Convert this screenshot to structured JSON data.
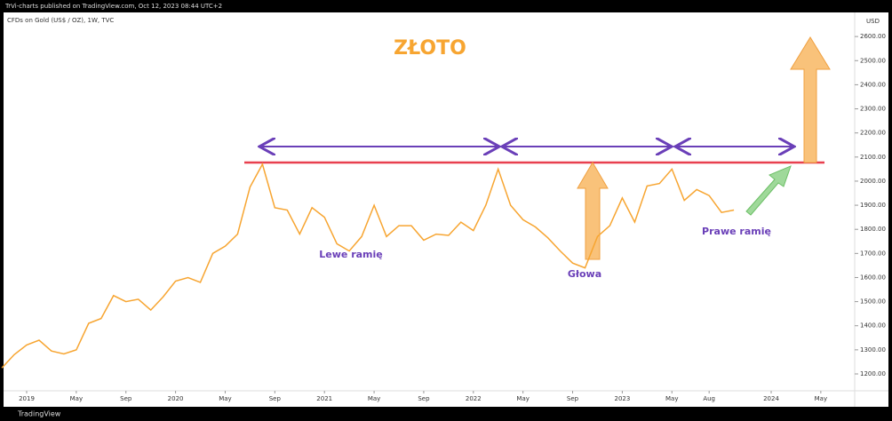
{
  "header": {
    "publisher": "TrVi-charts published on TradingView.com, Oct 12, 2023 08:44 UTC+2",
    "brand": "TradingView"
  },
  "chart_data": {
    "type": "line",
    "title": "ZŁOTO",
    "subtitle": "CFDs on Gold (US$ / OZ), 1W, TVC",
    "y_axis_label": "USD",
    "annotations": [
      "Lewe ramię",
      "Głowa",
      "Prawe ramię"
    ],
    "x": [
      "2018-11",
      "2018-12",
      "2019-01",
      "2019-02",
      "2019-03",
      "2019-04",
      "2019-05",
      "2019-06",
      "2019-07",
      "2019-08",
      "2019-09",
      "2019-10",
      "2019-11",
      "2019-12",
      "2020-01",
      "2020-02",
      "2020-03",
      "2020-04",
      "2020-05",
      "2020-06",
      "2020-07",
      "2020-08",
      "2020-09",
      "2020-10",
      "2020-11",
      "2020-12",
      "2021-01",
      "2021-02",
      "2021-03",
      "2021-04",
      "2021-05",
      "2021-06",
      "2021-07",
      "2021-08",
      "2021-09",
      "2021-10",
      "2021-11",
      "2021-12",
      "2022-01",
      "2022-02",
      "2022-03",
      "2022-04",
      "2022-05",
      "2022-06",
      "2022-07",
      "2022-08",
      "2022-09",
      "2022-10",
      "2022-11",
      "2022-12",
      "2023-01",
      "2023-02",
      "2023-03",
      "2023-04",
      "2023-05",
      "2023-06",
      "2023-07",
      "2023-08",
      "2023-09",
      "2023-10"
    ],
    "series": [
      {
        "name": "Gold",
        "color": "#f7a531",
        "values": [
          1225,
          1280,
          1320,
          1340,
          1295,
          1283,
          1300,
          1410,
          1430,
          1525,
          1500,
          1510,
          1465,
          1520,
          1585,
          1600,
          1580,
          1700,
          1730,
          1780,
          1975,
          2070,
          1890,
          1880,
          1780,
          1890,
          1850,
          1740,
          1710,
          1770,
          1900,
          1770,
          1815,
          1815,
          1755,
          1780,
          1775,
          1830,
          1795,
          1900,
          2050,
          1900,
          1840,
          1810,
          1765,
          1710,
          1660,
          1640,
          1770,
          1815,
          1930,
          1830,
          1980,
          1990,
          2050,
          1920,
          1965,
          1940,
          1870,
          1880
        ]
      }
    ],
    "ylim": [
      1130,
      2700
    ],
    "yticks": [
      {
        "value": 1200,
        "label": "1200.00"
      },
      {
        "value": 1300,
        "label": "1300.00"
      },
      {
        "value": 1400,
        "label": "1400.00"
      },
      {
        "value": 1500,
        "label": "1500.00"
      },
      {
        "value": 1600,
        "label": "1600.00"
      },
      {
        "value": 1700,
        "label": "1700.00"
      },
      {
        "value": 1800,
        "label": "1800.00"
      },
      {
        "value": 1900,
        "label": "1900.00"
      },
      {
        "value": 2000,
        "label": "2000.00"
      },
      {
        "value": 2100,
        "label": "2100.00"
      },
      {
        "value": 2200,
        "label": "2200.00"
      },
      {
        "value": 2300,
        "label": "2300.00"
      },
      {
        "value": 2400,
        "label": "2400.00"
      },
      {
        "value": 2500,
        "label": "2500.00"
      },
      {
        "value": 2600,
        "label": "2600.00"
      }
    ],
    "xticks": [
      {
        "value": "2019-01",
        "label": "2019"
      },
      {
        "value": "2019-05",
        "label": "May"
      },
      {
        "value": "2019-09",
        "label": "Sep"
      },
      {
        "value": "2020-01",
        "label": "2020"
      },
      {
        "value": "2020-05",
        "label": "May"
      },
      {
        "value": "2020-09",
        "label": "Sep"
      },
      {
        "value": "2021-01",
        "label": "2021"
      },
      {
        "value": "2021-05",
        "label": "May"
      },
      {
        "value": "2021-09",
        "label": "Sep"
      },
      {
        "value": "2022-01",
        "label": "2022"
      },
      {
        "value": "2022-05",
        "label": "May"
      },
      {
        "value": "2022-09",
        "label": "Sep"
      },
      {
        "value": "2023-01",
        "label": "2023"
      },
      {
        "value": "2023-05",
        "label": "May"
      },
      {
        "value": "2023-08",
        "label": "Aug"
      },
      {
        "value": "2024-01",
        "label": "2024"
      },
      {
        "value": "2024-05",
        "label": "May"
      }
    ],
    "grid": false
  }
}
